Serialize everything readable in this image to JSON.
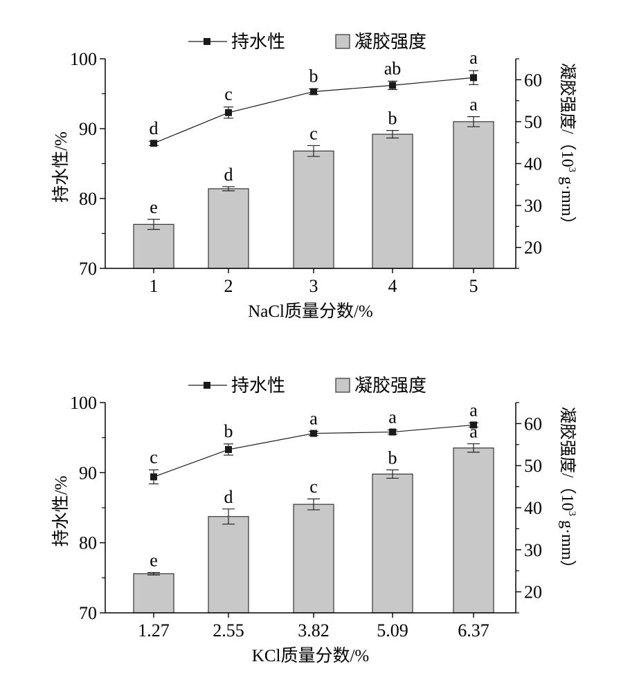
{
  "colors": {
    "bar_fill": "#c8c8c8",
    "bar_stroke": "#333333",
    "line": "#1a1a1a",
    "marker": "#1a1a1a",
    "axis": "#000000"
  },
  "legend": {
    "line_label": "持水性",
    "bar_label": "凝胶强度"
  },
  "chart_data": [
    {
      "type": "bar+line",
      "categories": [
        "1",
        "2",
        "3",
        "4",
        "5"
      ],
      "xlabel": "NaCl质量分数/%",
      "ylabel_left": "持水性/%",
      "ylabel_right_main": "凝胶强度/（10",
      "ylabel_right_sup": "3",
      "ylabel_right_tail": " g·mm）",
      "ylim_left": [
        70,
        100
      ],
      "yticks_left": [
        70,
        80,
        90,
        100
      ],
      "ylim_right": [
        15,
        65
      ],
      "yticks_right": [
        20,
        30,
        40,
        50,
        60
      ],
      "grid": false,
      "legend_position": "top",
      "series": [
        {
          "name": "持水性",
          "kind": "line",
          "axis": "left",
          "values": [
            87.9,
            92.3,
            95.3,
            96.2,
            97.3
          ],
          "errors": [
            0.3,
            0.8,
            0.4,
            0.6,
            1.0
          ],
          "labels": [
            "d",
            "c",
            "b",
            "ab",
            "a"
          ]
        },
        {
          "name": "凝胶强度",
          "kind": "bar",
          "axis": "right",
          "values": [
            25.5,
            34.0,
            43.0,
            47.0,
            50.0
          ],
          "errors": [
            1.2,
            0.5,
            1.3,
            0.9,
            1.2
          ],
          "labels": [
            "e",
            "d",
            "c",
            "b",
            "a"
          ]
        }
      ]
    },
    {
      "type": "bar+line",
      "categories": [
        "1.27",
        "2.55",
        "3.82",
        "5.09",
        "6.37"
      ],
      "xlabel": "KCl质量分数/%",
      "ylabel_left": "持水性/%",
      "ylabel_right_main": "凝胶强度/（10",
      "ylabel_right_sup": "3",
      "ylabel_right_tail": " g·mm）",
      "ylim_left": [
        70,
        100
      ],
      "yticks_left": [
        70,
        80,
        90,
        100
      ],
      "ylim_right": [
        15,
        65
      ],
      "yticks_right": [
        20,
        30,
        40,
        50,
        60
      ],
      "grid": false,
      "legend_position": "top",
      "series": [
        {
          "name": "持水性",
          "kind": "line",
          "axis": "left",
          "values": [
            89.4,
            93.3,
            95.6,
            95.8,
            96.8
          ],
          "errors": [
            1.0,
            0.8,
            0.3,
            0.3,
            0.3
          ],
          "labels": [
            "c",
            "b",
            "a",
            "a",
            "a"
          ]
        },
        {
          "name": "凝胶强度",
          "kind": "bar",
          "axis": "right",
          "values": [
            24.3,
            37.9,
            40.8,
            48.0,
            54.2
          ],
          "errors": [
            0.3,
            1.8,
            1.3,
            1.0,
            1.0
          ],
          "labels": [
            "e",
            "d",
            "c",
            "b",
            "a"
          ]
        }
      ]
    }
  ]
}
